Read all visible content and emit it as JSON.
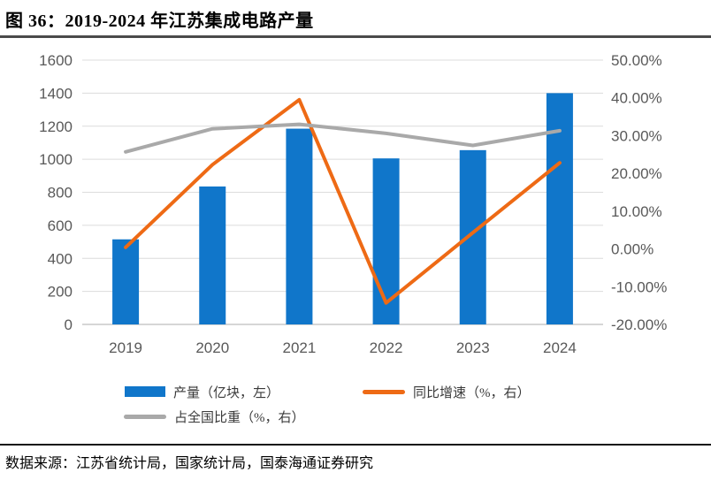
{
  "chart_data": {
    "type": "combo-bar-line",
    "title": "图 36：2019-2024 年江苏集成电路产量",
    "categories": [
      "2019",
      "2020",
      "2021",
      "2022",
      "2023",
      "2024"
    ],
    "series": [
      {
        "name": "产量（亿块，左）",
        "type": "bar",
        "axis": "left",
        "color": "#1076CA",
        "values": [
          515,
          835,
          1185,
          1005,
          1055,
          1400
        ]
      },
      {
        "name": "同比增速（%，右）",
        "type": "line",
        "axis": "right",
        "color": "#EE6A15",
        "values": [
          0.4,
          22.3,
          39.5,
          -14.3,
          4.3,
          22.8
        ]
      },
      {
        "name": "占全国比重（%，右）",
        "type": "line",
        "axis": "right",
        "color": "#A9A9A9",
        "values": [
          25.7,
          31.8,
          33.0,
          30.6,
          27.4,
          31.3
        ]
      }
    ],
    "left_axis": {
      "min": 0,
      "max": 1600,
      "step": 200,
      "tick_labels_top_to_bottom": [
        "1600",
        "1400",
        "1200",
        "1000",
        "800",
        "600",
        "400",
        "200",
        "0"
      ]
    },
    "right_axis": {
      "min": -20,
      "max": 50,
      "step": 10,
      "tick_labels_top_to_bottom": [
        "50.00%",
        "40.00%",
        "30.00%",
        "20.00%",
        "10.00%",
        "0.00%",
        "-10.00%",
        "-20.00%"
      ]
    },
    "grid": true,
    "legend_position": "bottom",
    "style": {
      "grid_color": "#dcdcdc",
      "axis_line_color": "#c9c9c9",
      "axis_text_color": "#595959",
      "bar_color": "#1076CA",
      "yoy_line_color": "#EE6A15",
      "share_line_color": "#A9A9A9"
    }
  },
  "source": {
    "text": "数据来源：江苏省统计局，国家统计局，国泰海通证券研究"
  }
}
